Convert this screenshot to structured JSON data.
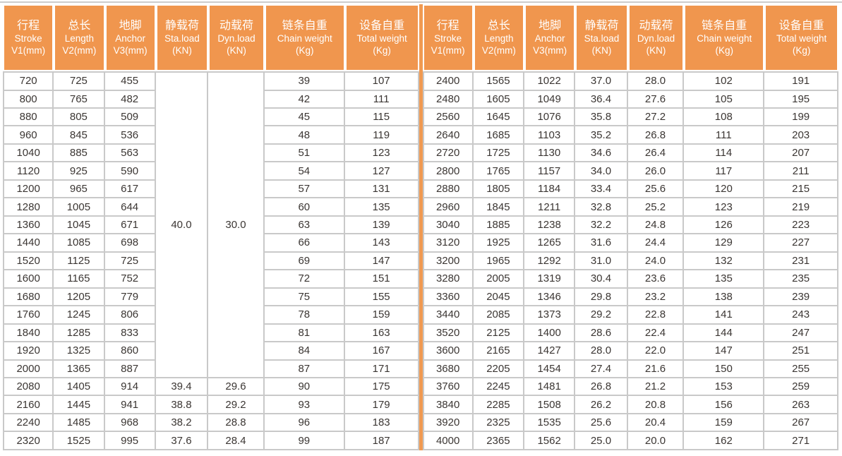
{
  "colors": {
    "header_orange": "#F0964E",
    "divider_orange": "#F09A52",
    "grid_gray": "#C9C9C9",
    "text_dark": "#3B3633",
    "header_text": "#FFFFFF",
    "background": "#FFFFFF"
  },
  "columns": [
    {
      "key": "stroke",
      "zh": "行程",
      "en": "Stroke",
      "unit": "V1(mm)"
    },
    {
      "key": "length",
      "zh": "总长",
      "en": "Length",
      "unit": "V2(mm)"
    },
    {
      "key": "anchor",
      "zh": "地脚",
      "en": "Anchor",
      "unit": "V3(mm)"
    },
    {
      "key": "sta-load",
      "zh": "静载荷",
      "en": "Sta.load",
      "unit": "(KN)"
    },
    {
      "key": "dyn-load",
      "zh": "动载荷",
      "en": "Dyn.load",
      "unit": "(KN)"
    },
    {
      "key": "chain-weight",
      "zh": "链条自重",
      "en": "Chain weight",
      "unit": "(Kg)"
    },
    {
      "key": "total-weight",
      "zh": "设备自重",
      "en": "Total weight",
      "unit": "(Kg)"
    }
  ],
  "left_table": {
    "merged": {
      "sta": "40.0",
      "dyn": "30.0",
      "rowspan": 17
    },
    "rows": [
      [
        "720",
        "725",
        "455",
        "",
        "",
        "39",
        "107"
      ],
      [
        "800",
        "765",
        "482",
        "",
        "",
        "42",
        "111"
      ],
      [
        "880",
        "805",
        "509",
        "",
        "",
        "45",
        "115"
      ],
      [
        "960",
        "845",
        "536",
        "",
        "",
        "48",
        "119"
      ],
      [
        "1040",
        "885",
        "563",
        "",
        "",
        "51",
        "123"
      ],
      [
        "1120",
        "925",
        "590",
        "",
        "",
        "54",
        "127"
      ],
      [
        "1200",
        "965",
        "617",
        "",
        "",
        "57",
        "131"
      ],
      [
        "1280",
        "1005",
        "644",
        "",
        "",
        "60",
        "135"
      ],
      [
        "1360",
        "1045",
        "671",
        "",
        "",
        "63",
        "139"
      ],
      [
        "1440",
        "1085",
        "698",
        "",
        "",
        "66",
        "143"
      ],
      [
        "1520",
        "1125",
        "725",
        "",
        "",
        "69",
        "147"
      ],
      [
        "1600",
        "1165",
        "752",
        "",
        "",
        "72",
        "151"
      ],
      [
        "1680",
        "1205",
        "779",
        "",
        "",
        "75",
        "155"
      ],
      [
        "1760",
        "1245",
        "806",
        "",
        "",
        "78",
        "159"
      ],
      [
        "1840",
        "1285",
        "833",
        "",
        "",
        "81",
        "163"
      ],
      [
        "1920",
        "1325",
        "860",
        "",
        "",
        "84",
        "167"
      ],
      [
        "2000",
        "1365",
        "887",
        "",
        "",
        "87",
        "171"
      ],
      [
        "2080",
        "1405",
        "914",
        "39.4",
        "29.6",
        "90",
        "175"
      ],
      [
        "2160",
        "1445",
        "941",
        "38.8",
        "29.2",
        "93",
        "179"
      ],
      [
        "2240",
        "1485",
        "968",
        "38.2",
        "28.8",
        "96",
        "183"
      ],
      [
        "2320",
        "1525",
        "995",
        "37.6",
        "28.4",
        "99",
        "187"
      ]
    ]
  },
  "right_table": {
    "merged": null,
    "rows": [
      [
        "2400",
        "1565",
        "1022",
        "37.0",
        "28.0",
        "102",
        "191"
      ],
      [
        "2480",
        "1605",
        "1049",
        "36.4",
        "27.6",
        "105",
        "195"
      ],
      [
        "2560",
        "1645",
        "1076",
        "35.8",
        "27.2",
        "108",
        "199"
      ],
      [
        "2640",
        "1685",
        "1103",
        "35.2",
        "26.8",
        "111",
        "203"
      ],
      [
        "2720",
        "1725",
        "1130",
        "34.6",
        "26.4",
        "114",
        "207"
      ],
      [
        "2800",
        "1765",
        "1157",
        "34.0",
        "26.0",
        "117",
        "211"
      ],
      [
        "2880",
        "1805",
        "1184",
        "33.4",
        "25.6",
        "120",
        "215"
      ],
      [
        "2960",
        "1845",
        "1211",
        "32.8",
        "25.2",
        "123",
        "219"
      ],
      [
        "3040",
        "1885",
        "1238",
        "32.2",
        "24.8",
        "126",
        "223"
      ],
      [
        "3120",
        "1925",
        "1265",
        "31.6",
        "24.4",
        "129",
        "227"
      ],
      [
        "3200",
        "1965",
        "1292",
        "31.0",
        "24.0",
        "132",
        "231"
      ],
      [
        "3280",
        "2005",
        "1319",
        "30.4",
        "23.6",
        "135",
        "235"
      ],
      [
        "3360",
        "2045",
        "1346",
        "29.8",
        "23.2",
        "138",
        "239"
      ],
      [
        "3440",
        "2085",
        "1373",
        "29.2",
        "22.8",
        "141",
        "243"
      ],
      [
        "3520",
        "2125",
        "1400",
        "28.6",
        "22.4",
        "144",
        "247"
      ],
      [
        "3600",
        "2165",
        "1427",
        "28.0",
        "22.0",
        "147",
        "251"
      ],
      [
        "3680",
        "2205",
        "1454",
        "27.4",
        "21.6",
        "150",
        "255"
      ],
      [
        "3760",
        "2245",
        "1481",
        "26.8",
        "21.2",
        "153",
        "259"
      ],
      [
        "3840",
        "2285",
        "1508",
        "26.2",
        "20.8",
        "156",
        "263"
      ],
      [
        "3920",
        "2325",
        "1535",
        "25.6",
        "20.4",
        "159",
        "267"
      ],
      [
        "4000",
        "2365",
        "1562",
        "25.0",
        "20.0",
        "162",
        "271"
      ]
    ]
  }
}
